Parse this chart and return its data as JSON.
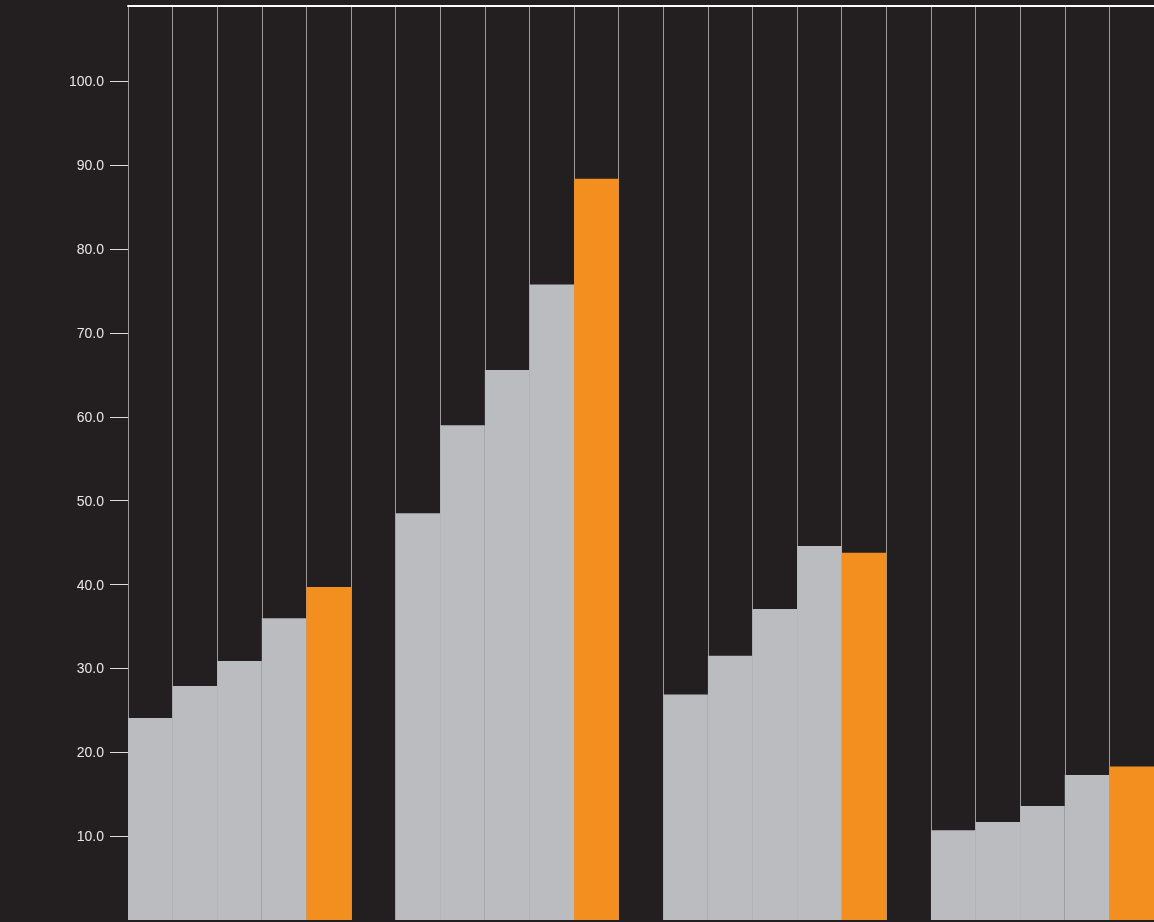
{
  "chart_data": {
    "type": "bar",
    "categories": [
      null,
      null,
      null,
      null,
      null,
      null,
      null,
      null,
      null,
      null,
      null,
      null,
      null,
      null,
      null,
      null,
      null,
      null,
      null,
      null,
      null,
      null,
      null
    ],
    "values": [
      24.1,
      27.9,
      30.9,
      36.0,
      39.7,
      null,
      48.5,
      59.0,
      65.6,
      75.8,
      88.4,
      null,
      26.9,
      31.5,
      37.1,
      44.6,
      43.8,
      null,
      10.7,
      11.7,
      13.6,
      17.3,
      18.3
    ],
    "colors": [
      "#bbbcbf",
      "#bbbcbf",
      "#bbbcbf",
      "#bbbcbf",
      "#f28f1f",
      null,
      "#bbbcbf",
      "#bbbcbf",
      "#bbbcbf",
      "#bbbcbf",
      "#f28f1f",
      null,
      "#bbbcbf",
      "#bbbcbf",
      "#bbbcbf",
      "#bbbcbf",
      "#f28f1f",
      null,
      "#bbbcbf",
      "#bbbcbf",
      "#bbbcbf",
      "#bbbcbf",
      "#f28f1f"
    ],
    "ylim": [
      0,
      109
    ],
    "yticks": [
      {
        "value": 10,
        "label": "10.0"
      },
      {
        "value": 20,
        "label": "20.0"
      },
      {
        "value": 30,
        "label": "30.0"
      },
      {
        "value": 40,
        "label": "40.0"
      },
      {
        "value": 50,
        "label": "50.0"
      },
      {
        "value": 60,
        "label": "60.0"
      },
      {
        "value": 70,
        "label": "70.0"
      },
      {
        "value": 80,
        "label": "80.0"
      },
      {
        "value": 90,
        "label": "90.0"
      },
      {
        "value": 100,
        "label": "100.0"
      }
    ],
    "grid": "x",
    "tick_labels": "y"
  }
}
